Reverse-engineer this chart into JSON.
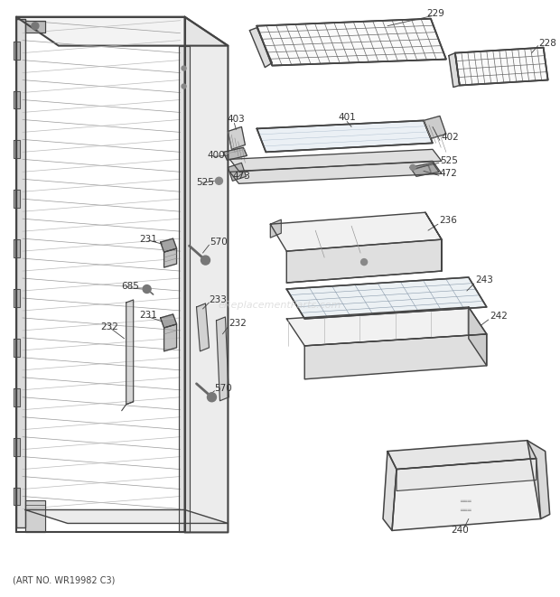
{
  "art_no": "(ART NO. WR19982 C3)",
  "watermark": "eReplacementParts.com",
  "bg_color": "#ffffff",
  "lc": "#444444",
  "fig_w": 6.2,
  "fig_h": 6.61,
  "dpi": 100
}
